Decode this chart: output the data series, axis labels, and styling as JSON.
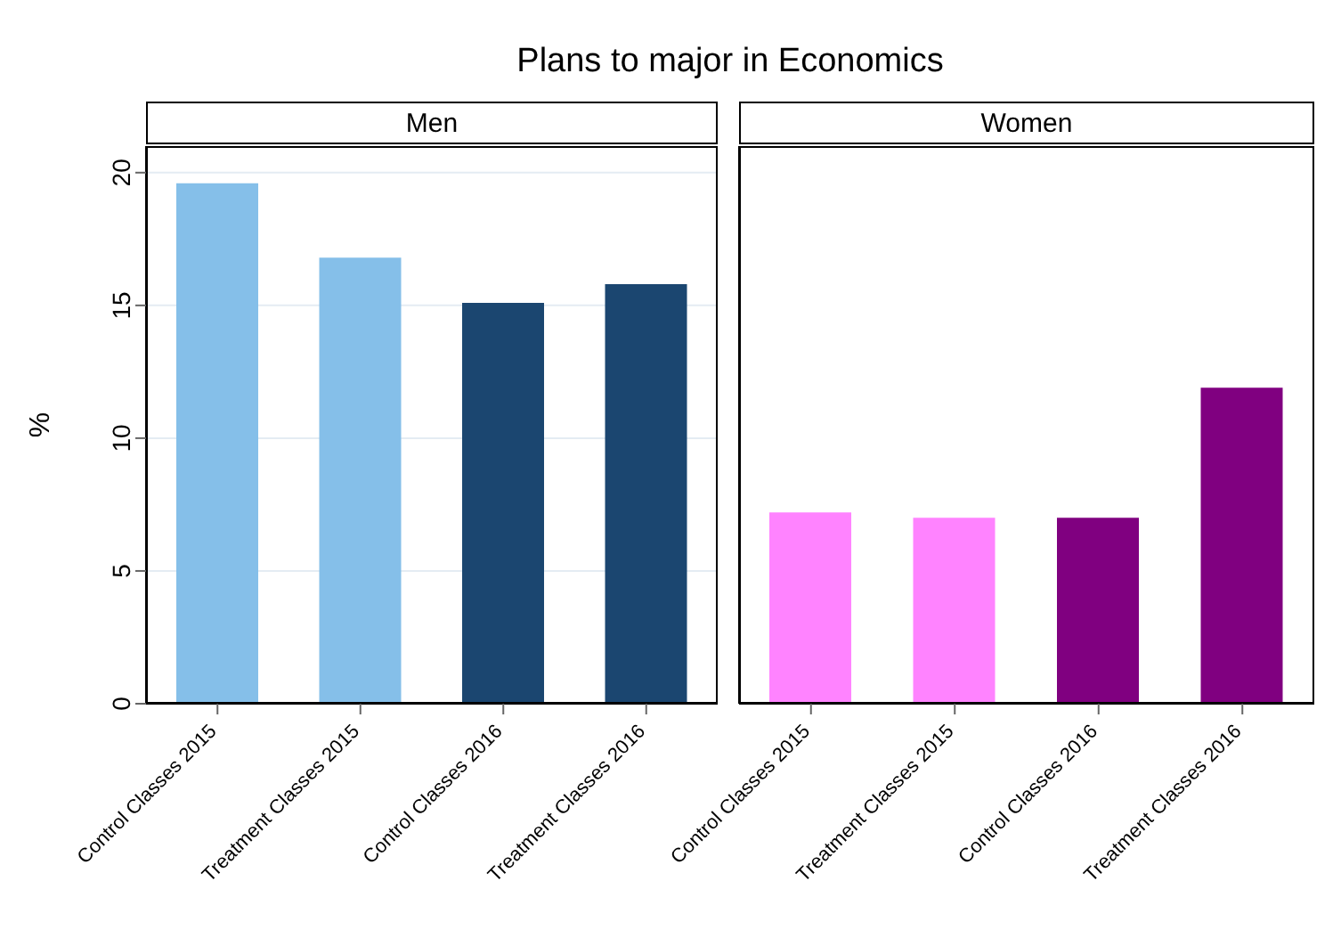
{
  "chart_data": [
    {
      "type": "bar",
      "title": "Plans to major in Economics",
      "subtitle": "Men",
      "ylabel": "%",
      "categories": [
        "Control Classes 2015",
        "Treatment Classes 2015",
        "Control Classes 2016",
        "Treatment Classes 2016"
      ],
      "values": [
        19.6,
        16.8,
        15.1,
        15.8
      ],
      "colors": [
        "#85bfe9",
        "#85bfe9",
        "#1b4670",
        "#1b4670"
      ],
      "ylim": [
        0,
        21
      ],
      "yticks": [
        0,
        5,
        10,
        15,
        20
      ],
      "grid": "y"
    },
    {
      "type": "bar",
      "subtitle": "Women",
      "categories": [
        "Control Classes 2015",
        "Treatment Classes 2015",
        "Control Classes 2016",
        "Treatment Classes 2016"
      ],
      "values": [
        7.2,
        7.0,
        7.0,
        11.9
      ],
      "colors": [
        "#ff83ff",
        "#ff83ff",
        "#800080",
        "#800080"
      ],
      "ylim": [
        0,
        21
      ],
      "yticks": [
        0,
        5,
        10,
        15,
        20
      ],
      "grid": "y",
      "tick_labels": "x"
    }
  ]
}
